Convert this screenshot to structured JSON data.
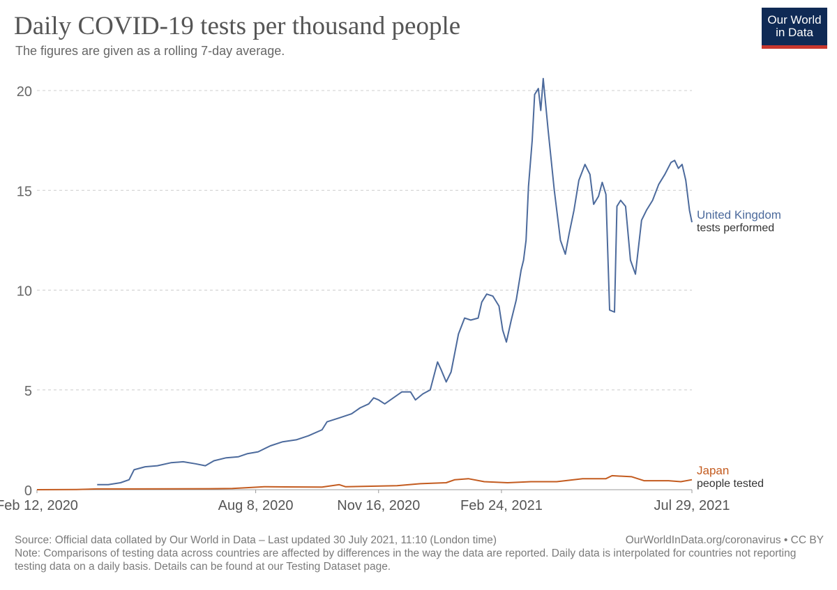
{
  "header": {
    "title": "Daily COVID-19 tests per thousand people",
    "subtitle": "The figures are given as a rolling 7-day average.",
    "logo_line1": "Our World",
    "logo_line2": "in Data"
  },
  "colors": {
    "uk": "#4c6a9c",
    "japan": "#c35b1f",
    "grid": "#cccccc",
    "logo_bg": "#0f2a55",
    "logo_accent": "#c8372d"
  },
  "chart_data": {
    "type": "line",
    "title": "Daily COVID-19 tests per thousand people",
    "subtitle": "The figures are given as a rolling 7-day average.",
    "ylim": [
      0,
      20
    ],
    "y_ticks": [
      "0",
      "5",
      "10",
      "15",
      "20"
    ],
    "x_ticks": [
      "Feb 12, 2020",
      "Aug 8, 2020",
      "Nov 16, 2020",
      "Feb 24, 2021",
      "Jul 29, 2021"
    ],
    "x_range": [
      "2020-02-12",
      "2021-07-29"
    ],
    "grid": "horizontal dashed",
    "series": [
      {
        "name": "United Kingdom",
        "label_sub": "tests performed",
        "color": "#4c6a9c",
        "points": [
          [
            "2020-04-01",
            0.25
          ],
          [
            "2020-04-10",
            0.25
          ],
          [
            "2020-04-20",
            0.35
          ],
          [
            "2020-04-27",
            0.5
          ],
          [
            "2020-05-01",
            1.0
          ],
          [
            "2020-05-10",
            1.15
          ],
          [
            "2020-05-20",
            1.2
          ],
          [
            "2020-05-31",
            1.35
          ],
          [
            "2020-06-10",
            1.4
          ],
          [
            "2020-06-20",
            1.3
          ],
          [
            "2020-06-28",
            1.2
          ],
          [
            "2020-07-05",
            1.45
          ],
          [
            "2020-07-15",
            1.6
          ],
          [
            "2020-07-25",
            1.65
          ],
          [
            "2020-08-01",
            1.8
          ],
          [
            "2020-08-10",
            1.9
          ],
          [
            "2020-08-20",
            2.2
          ],
          [
            "2020-08-30",
            2.4
          ],
          [
            "2020-09-10",
            2.5
          ],
          [
            "2020-09-20",
            2.7
          ],
          [
            "2020-10-01",
            3.0
          ],
          [
            "2020-10-05",
            3.4
          ],
          [
            "2020-10-15",
            3.6
          ],
          [
            "2020-10-25",
            3.8
          ],
          [
            "2020-11-01",
            4.1
          ],
          [
            "2020-11-08",
            4.3
          ],
          [
            "2020-11-12",
            4.6
          ],
          [
            "2020-11-16",
            4.5
          ],
          [
            "2020-11-21",
            4.3
          ],
          [
            "2020-11-28",
            4.6
          ],
          [
            "2020-12-05",
            4.9
          ],
          [
            "2020-12-12",
            4.9
          ],
          [
            "2020-12-16",
            4.5
          ],
          [
            "2020-12-22",
            4.8
          ],
          [
            "2020-12-28",
            5.0
          ],
          [
            "2021-01-03",
            6.4
          ],
          [
            "2021-01-06",
            6.0
          ],
          [
            "2021-01-10",
            5.4
          ],
          [
            "2021-01-14",
            5.9
          ],
          [
            "2021-01-20",
            7.8
          ],
          [
            "2021-01-25",
            8.6
          ],
          [
            "2021-01-30",
            8.5
          ],
          [
            "2021-02-05",
            8.6
          ],
          [
            "2021-02-08",
            9.4
          ],
          [
            "2021-02-12",
            9.8
          ],
          [
            "2021-02-17",
            9.7
          ],
          [
            "2021-02-22",
            9.2
          ],
          [
            "2021-02-25",
            8.0
          ],
          [
            "2021-02-28",
            7.4
          ],
          [
            "2021-03-04",
            8.5
          ],
          [
            "2021-03-08",
            9.5
          ],
          [
            "2021-03-12",
            11.0
          ],
          [
            "2021-03-14",
            11.5
          ],
          [
            "2021-03-16",
            12.5
          ],
          [
            "2021-03-18",
            15.2
          ],
          [
            "2021-03-21",
            17.5
          ],
          [
            "2021-03-23",
            19.8
          ],
          [
            "2021-03-26",
            20.1
          ],
          [
            "2021-03-28",
            19.0
          ],
          [
            "2021-03-30",
            20.6
          ],
          [
            "2021-04-03",
            18.0
          ],
          [
            "2021-04-08",
            15.0
          ],
          [
            "2021-04-13",
            12.5
          ],
          [
            "2021-04-17",
            11.8
          ],
          [
            "2021-04-20",
            12.8
          ],
          [
            "2021-04-24",
            14.0
          ],
          [
            "2021-04-28",
            15.5
          ],
          [
            "2021-05-03",
            16.3
          ],
          [
            "2021-05-07",
            15.8
          ],
          [
            "2021-05-10",
            14.3
          ],
          [
            "2021-05-14",
            14.7
          ],
          [
            "2021-05-17",
            15.4
          ],
          [
            "2021-05-20",
            14.8
          ],
          [
            "2021-05-23",
            9.0
          ],
          [
            "2021-05-27",
            8.9
          ],
          [
            "2021-05-29",
            14.2
          ],
          [
            "2021-06-01",
            14.5
          ],
          [
            "2021-06-05",
            14.2
          ],
          [
            "2021-06-09",
            11.5
          ],
          [
            "2021-06-13",
            10.8
          ],
          [
            "2021-06-18",
            13.5
          ],
          [
            "2021-06-22",
            14.0
          ],
          [
            "2021-06-27",
            14.5
          ],
          [
            "2021-07-02",
            15.3
          ],
          [
            "2021-07-07",
            15.8
          ],
          [
            "2021-07-12",
            16.4
          ],
          [
            "2021-07-15",
            16.5
          ],
          [
            "2021-07-18",
            16.1
          ],
          [
            "2021-07-21",
            16.3
          ],
          [
            "2021-07-24",
            15.5
          ],
          [
            "2021-07-27",
            14.0
          ],
          [
            "2021-07-29",
            13.4
          ]
        ]
      },
      {
        "name": "Japan",
        "label_sub": "people tested",
        "color": "#c35b1f",
        "points": [
          [
            "2020-02-12",
            0.0
          ],
          [
            "2020-03-15",
            0.01
          ],
          [
            "2020-04-01",
            0.04
          ],
          [
            "2020-05-01",
            0.04
          ],
          [
            "2020-07-01",
            0.05
          ],
          [
            "2020-07-20",
            0.06
          ],
          [
            "2020-08-01",
            0.1
          ],
          [
            "2020-08-15",
            0.15
          ],
          [
            "2020-09-01",
            0.14
          ],
          [
            "2020-10-01",
            0.13
          ],
          [
            "2020-10-15",
            0.25
          ],
          [
            "2020-10-20",
            0.15
          ],
          [
            "2020-12-01",
            0.2
          ],
          [
            "2020-12-20",
            0.3
          ],
          [
            "2021-01-10",
            0.35
          ],
          [
            "2021-01-17",
            0.5
          ],
          [
            "2021-01-28",
            0.55
          ],
          [
            "2021-02-10",
            0.4
          ],
          [
            "2021-03-01",
            0.35
          ],
          [
            "2021-03-20",
            0.4
          ],
          [
            "2021-04-10",
            0.4
          ],
          [
            "2021-05-01",
            0.55
          ],
          [
            "2021-05-20",
            0.55
          ],
          [
            "2021-05-25",
            0.7
          ],
          [
            "2021-06-10",
            0.65
          ],
          [
            "2021-06-20",
            0.45
          ],
          [
            "2021-07-10",
            0.45
          ],
          [
            "2021-07-20",
            0.4
          ],
          [
            "2021-07-29",
            0.5
          ]
        ]
      }
    ]
  },
  "footer": {
    "source": "Source: Official data collated by Our World in Data – Last updated 30 July 2021, 11:10 (London time)",
    "url": "OurWorldInData.org/coronavirus • CC BY",
    "note": "Note: Comparisons of testing data across countries are affected by differences in the way the data are reported. Daily data is interpolated for countries not reporting testing data on a daily basis. Details can be found at our Testing Dataset page."
  }
}
